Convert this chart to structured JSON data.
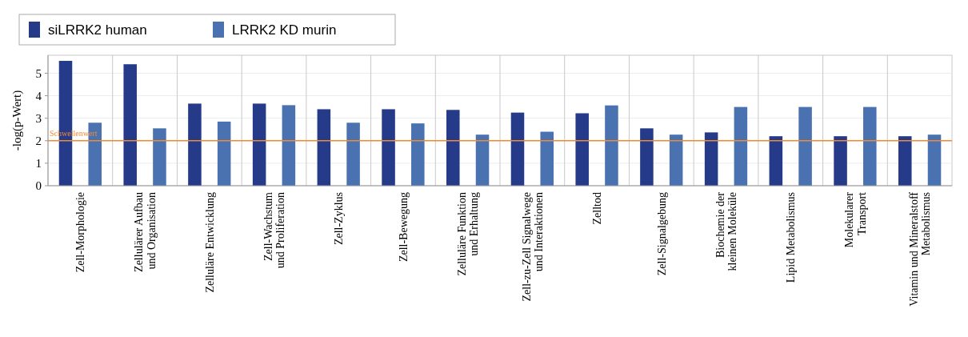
{
  "chart_data": {
    "type": "bar",
    "ylabel": "-log(p-Wert)",
    "categories": [
      "Zell-Morphologie",
      "Zellulärer Aufbau\nund Organisation",
      "Zelluläre Entwicklung",
      "Zell-Wachstum\nund Proliferation",
      "Zell-Zyklus",
      "Zell-Bewegung",
      "Zelluläre Funktion\nund Erhaltung",
      "Zell-zu-Zell Signalwege\nund Interaktionen",
      "Zelltod",
      "Zell-Signalgebung",
      "Biochemie der\nkleinen Moleküle",
      "Lipid Metabolismus",
      "Molekularer\nTransport",
      "Vitamin und Mineralstoff\nMetabolismus"
    ],
    "series": [
      {
        "name": "siLRRK2 human",
        "color": "#263a8a",
        "values": [
          5.55,
          5.4,
          3.65,
          3.65,
          3.4,
          3.4,
          3.37,
          3.25,
          3.22,
          2.55,
          2.37,
          2.2,
          2.2,
          2.2
        ]
      },
      {
        "name": "LRRK2 KD murin",
        "color": "#4a72b0",
        "values": [
          2.8,
          2.55,
          2.85,
          3.58,
          2.8,
          2.77,
          2.27,
          2.4,
          3.57,
          2.27,
          3.5,
          3.5,
          3.5,
          2.27
        ]
      }
    ],
    "ylim": [
      0,
      5.8
    ],
    "yticks": [
      0,
      1,
      2,
      3,
      4,
      5
    ],
    "grid": true,
    "legend": "top left",
    "ref_lines": [
      {
        "axis": "y",
        "value": 2,
        "label": "Schwellenwert",
        "color": "#f28a30"
      }
    ]
  }
}
